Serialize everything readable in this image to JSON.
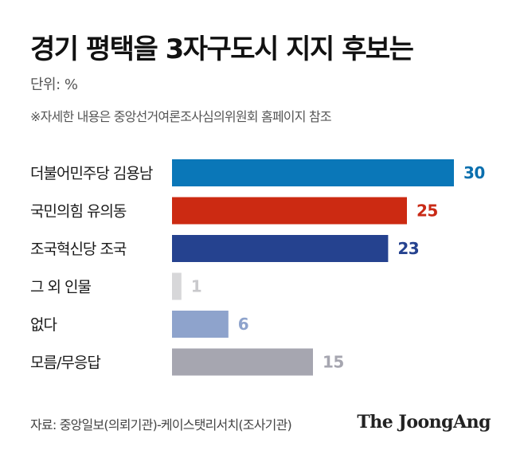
{
  "header": {
    "title": "경기 평택을 3자구도시 지지 후보는",
    "unit": "단위: %",
    "note": "※자세한 내용은 중앙선거여론조사심의위원회 홈페이지 참조"
  },
  "chart_data": {
    "type": "bar",
    "orientation": "horizontal",
    "title": "경기 평택을 3자구도시 지지 후보는",
    "xlabel": "",
    "ylabel": "",
    "grid": false,
    "xlim": [
      0,
      30
    ],
    "categories": [
      "더불어민주당 김용남",
      "국민의힘 유의동",
      "조국혁신당 조국",
      "그 외 인물",
      "없다",
      "모름/무응답"
    ],
    "values": [
      30,
      25,
      23,
      1,
      6,
      15
    ],
    "bar_colors": [
      "#0a77b8",
      "#cc2a12",
      "#25428f",
      "#d7d7d9",
      "#8ea3cc",
      "#a6a6b0"
    ],
    "label_colors": [
      "#0a6fae",
      "#c92a16",
      "#25428f",
      "#c9c9cc",
      "#8ea3cc",
      "#a6a6b0"
    ]
  },
  "footer": {
    "source": "자료: 중앙일보(의뢰기관)-케이스탯리서치(조사기관)",
    "logo": "The JoongAng"
  }
}
